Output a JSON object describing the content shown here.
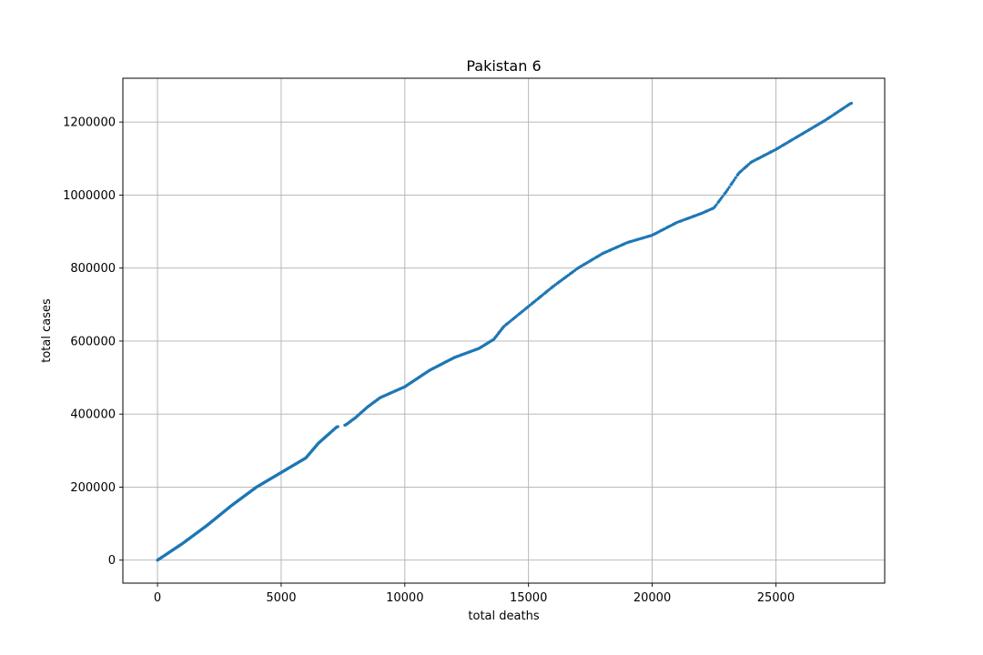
{
  "chart_data": {
    "type": "scatter",
    "title": "Pakistan 6",
    "xlabel": "total deaths",
    "ylabel": "total cases",
    "xlim": [
      -1400,
      29400
    ],
    "ylim": [
      -63000,
      1320000
    ],
    "xticks": [
      0,
      5000,
      10000,
      15000,
      20000,
      25000
    ],
    "yticks": [
      0,
      200000,
      400000,
      600000,
      800000,
      1000000,
      1200000
    ],
    "xtick_labels": [
      "0",
      "5000",
      "10000",
      "15000",
      "20000",
      "25000"
    ],
    "ytick_labels": [
      "0",
      "200000",
      "400000",
      "600000",
      "800000",
      "1000000",
      "1200000"
    ],
    "grid": true,
    "marker_color": "#1f77b4",
    "trend_points": [
      [
        0,
        0
      ],
      [
        1000,
        45000
      ],
      [
        2000,
        95000
      ],
      [
        3000,
        150000
      ],
      [
        4000,
        200000
      ],
      [
        5000,
        240000
      ],
      [
        6000,
        280000
      ],
      [
        6500,
        320000
      ],
      [
        7250,
        365000
      ],
      [
        7600,
        370000
      ],
      [
        8000,
        390000
      ],
      [
        8500,
        420000
      ],
      [
        9000,
        445000
      ],
      [
        10000,
        475000
      ],
      [
        11000,
        520000
      ],
      [
        12000,
        555000
      ],
      [
        13000,
        580000
      ],
      [
        13600,
        605000
      ],
      [
        14000,
        640000
      ],
      [
        15000,
        695000
      ],
      [
        16000,
        750000
      ],
      [
        17000,
        800000
      ],
      [
        18000,
        840000
      ],
      [
        19000,
        870000
      ],
      [
        20000,
        890000
      ],
      [
        21000,
        925000
      ],
      [
        22000,
        950000
      ],
      [
        22500,
        965000
      ],
      [
        23000,
        1010000
      ],
      [
        23500,
        1060000
      ],
      [
        24000,
        1090000
      ],
      [
        25000,
        1125000
      ],
      [
        26000,
        1165000
      ],
      [
        27000,
        1205000
      ],
      [
        28000,
        1250000
      ],
      [
        28100,
        1253000
      ]
    ],
    "gaps": [
      [
        7300,
        7550
      ]
    ]
  }
}
